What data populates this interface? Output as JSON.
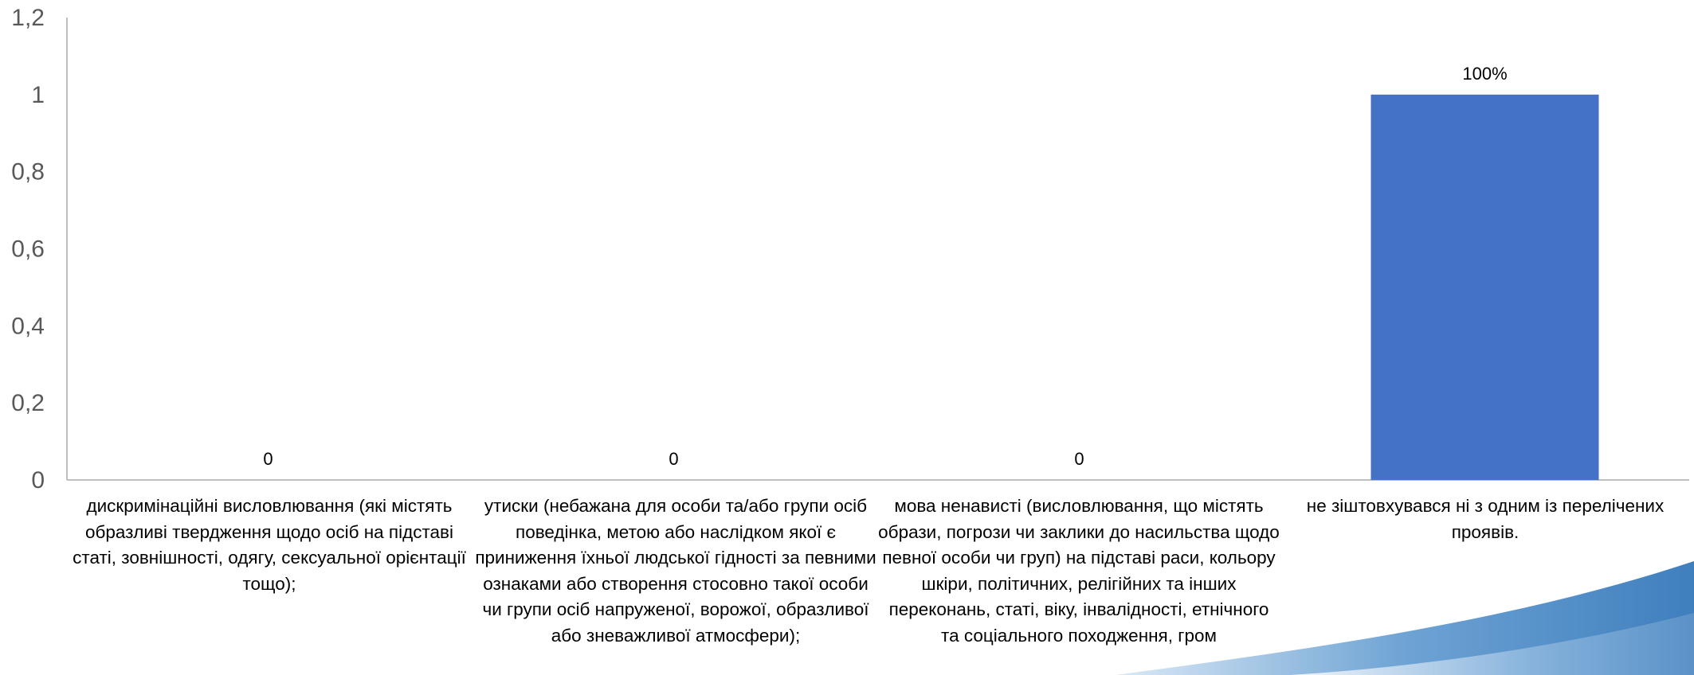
{
  "chart_data": {
    "type": "bar",
    "categories": [
      "дискримінаційні висловлювання (які містять образливі твердження щодо осіб на підставі статі, зовнішності, одягу, сексуальної орієнтації тощо);",
      "утиски (небажана для особи та/або групи осіб поведінка, метою або наслідком якої є приниження їхньої людської гідності за певними ознаками або створення стосовно такої особи чи групи осіб напруженої, ворожої, образливої або зневажливої атмосфери);",
      "мова ненависті (висловлювання, що містять образи, погрози чи заклики до насильства щодо певної особи чи груп) на підставі раси, кольору шкіри, політичних, релігійних та інших переконань, статі, віку, інвалідності, етнічного та соціального походження, гром",
      "не зіштовхувався ні з одним із перелічених проявів."
    ],
    "values": [
      0,
      0,
      0,
      1
    ],
    "data_labels": [
      "0",
      "0",
      "0",
      "100%"
    ],
    "yticks": [
      "0",
      "0,2",
      "0,4",
      "0,6",
      "0,8",
      "1",
      "1,2"
    ],
    "ylim": [
      0,
      1.2
    ],
    "grid": false,
    "legend": "none",
    "colors": {
      "bar": "#4472C4",
      "axis": "#BFBFBF",
      "swoosh_dark": "#2E6DA4",
      "swoosh_light": "#9FC3E3"
    }
  }
}
